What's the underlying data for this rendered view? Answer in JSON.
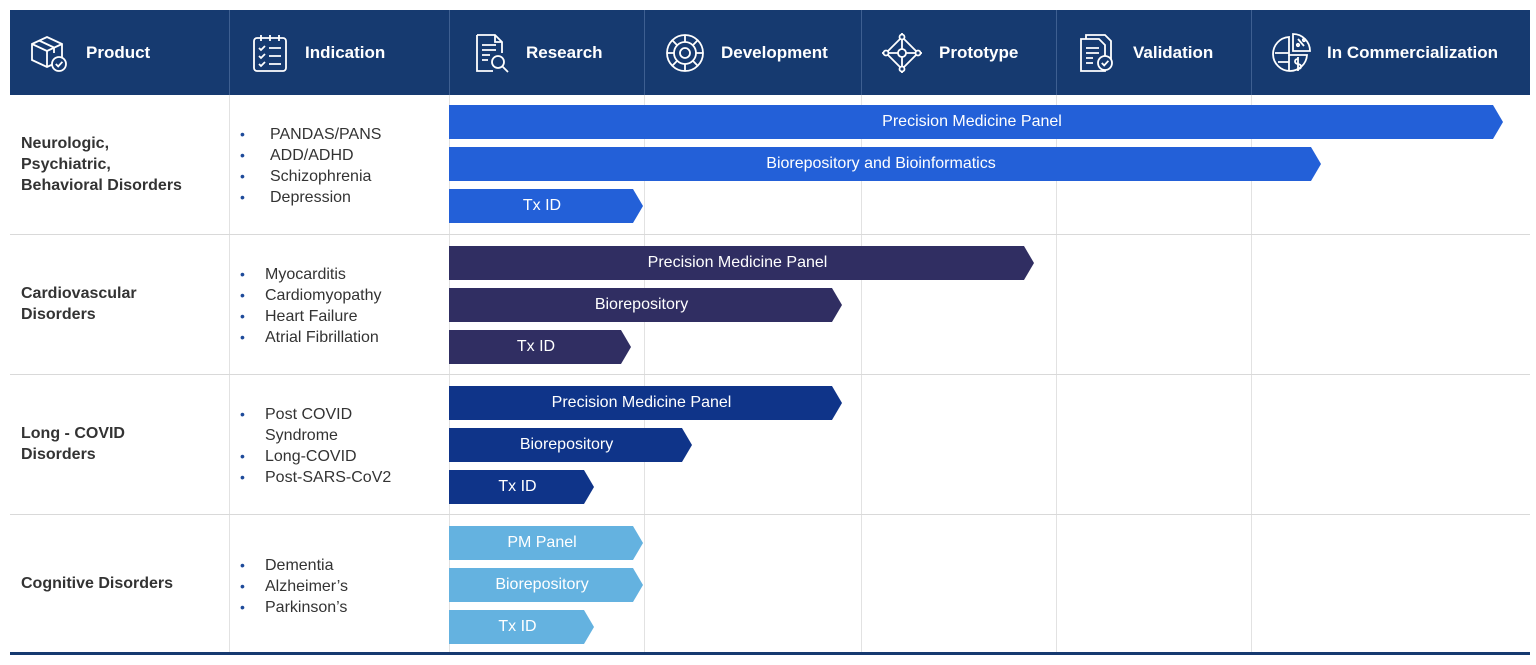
{
  "colors": {
    "header_bg": "#163a70",
    "neuro": "#2360d8",
    "cardio": "#302e62",
    "covid": "#0f3489",
    "cognitive": "#64b2e0"
  },
  "header": {
    "product": {
      "label": "Product",
      "icon": "box-check-icon"
    },
    "indication": {
      "label": "Indication",
      "icon": "checklist-icon"
    },
    "research": {
      "label": "Research",
      "icon": "document-search-icon"
    },
    "development": {
      "label": "Development",
      "icon": "gear-icon"
    },
    "prototype": {
      "label": "Prototype",
      "icon": "node-diamond-icon"
    },
    "validation": {
      "label": "Validation",
      "icon": "documents-check-icon"
    },
    "commercialization": {
      "label": "In Commercialization",
      "icon": "pie-dollar-percent-icon"
    }
  },
  "rows": [
    {
      "product": "Neurologic,\nPsychiatric,\nBehavioral Disorders",
      "indications": [
        "PANDAS/PANS",
        "ADD/ADHD",
        "Schizophrenia",
        "Depression"
      ],
      "bars": [
        {
          "label": "Precision Medicine Panel",
          "stage": "In Commercialization"
        },
        {
          "label": "Biorepository and Bioinformatics",
          "stage": "In Commercialization"
        },
        {
          "label": "Tx ID",
          "stage": "Research"
        }
      ]
    },
    {
      "product": "Cardiovascular\nDisorders",
      "indications": [
        "Myocarditis",
        "Cardiomyopathy",
        "Heart Failure",
        "Atrial Fibrillation"
      ],
      "bars": [
        {
          "label": "Precision Medicine Panel",
          "stage": "Prototype"
        },
        {
          "label": "Biorepository",
          "stage": "Development"
        },
        {
          "label": "Tx ID",
          "stage": "Research"
        }
      ]
    },
    {
      "product": "Long - COVID\nDisorders",
      "indications": [
        "Post COVID\nSyndrome",
        "Long-COVID",
        "Post-SARS-CoV2"
      ],
      "bars": [
        {
          "label": "Precision Medicine Panel",
          "stage": "Development"
        },
        {
          "label": "Biorepository",
          "stage": "Development"
        },
        {
          "label": "Tx ID",
          "stage": "Research"
        }
      ]
    },
    {
      "product": "Cognitive Disorders",
      "indications": [
        "Dementia",
        "Alzheimer’s",
        "Parkinson’s"
      ],
      "bars": [
        {
          "label": "PM Panel",
          "stage": "Research"
        },
        {
          "label": "Biorepository",
          "stage": "Research"
        },
        {
          "label": "Tx ID",
          "stage": "Research"
        }
      ]
    }
  ]
}
